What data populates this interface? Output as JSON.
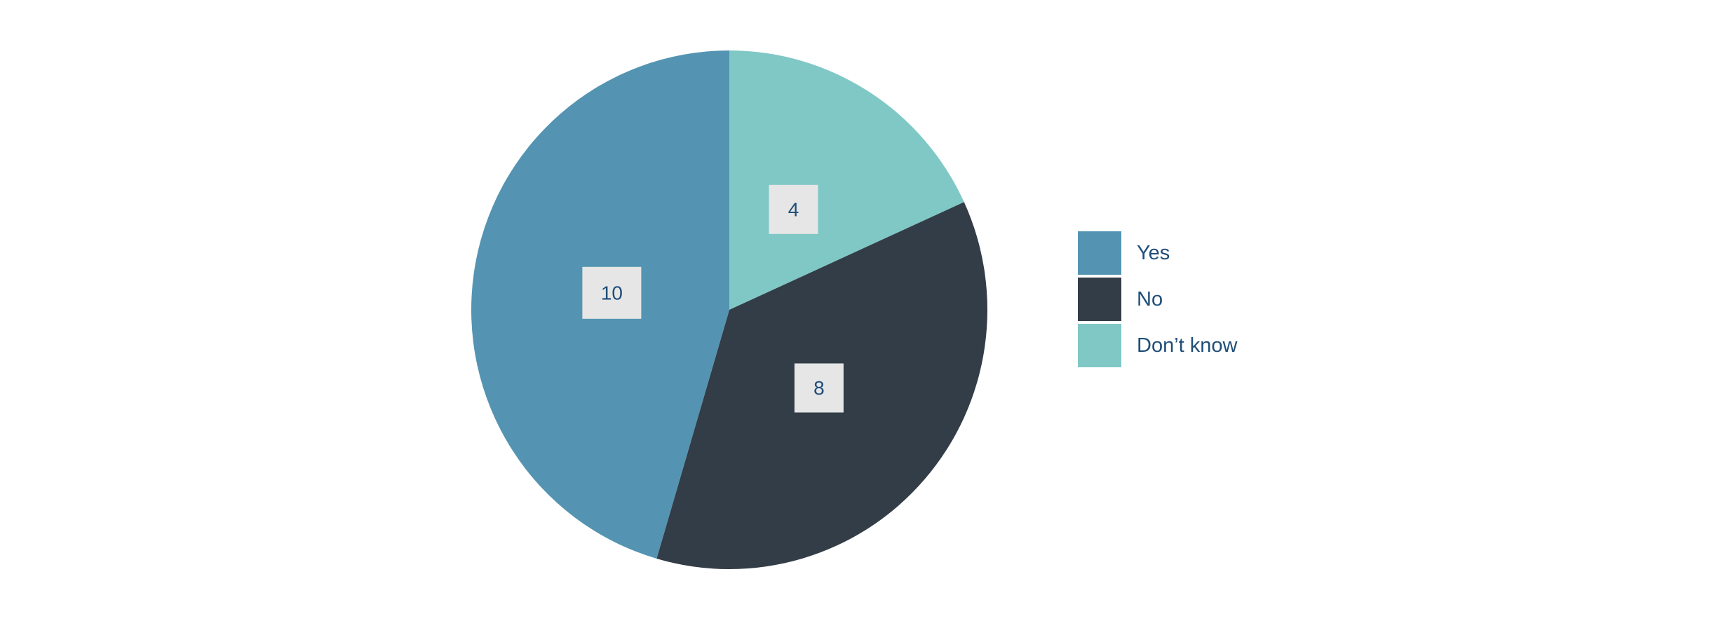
{
  "chart_data": {
    "type": "pie",
    "start_angle_deg": 0,
    "direction": "clockwise",
    "slices": [
      {
        "label": "Don’t know",
        "value": 4,
        "value_label": "4",
        "color": "#7fc8c6"
      },
      {
        "label": "No",
        "value": 8,
        "value_label": "8",
        "color": "#333d47"
      },
      {
        "label": "Yes",
        "value": 10,
        "value_label": "10",
        "color": "#5494b2"
      }
    ],
    "legend": {
      "position": "right",
      "order": [
        "Yes",
        "No",
        "Don’t know"
      ]
    },
    "data_label_background": "#e6e6e6",
    "text_color": "#1f4e79"
  }
}
